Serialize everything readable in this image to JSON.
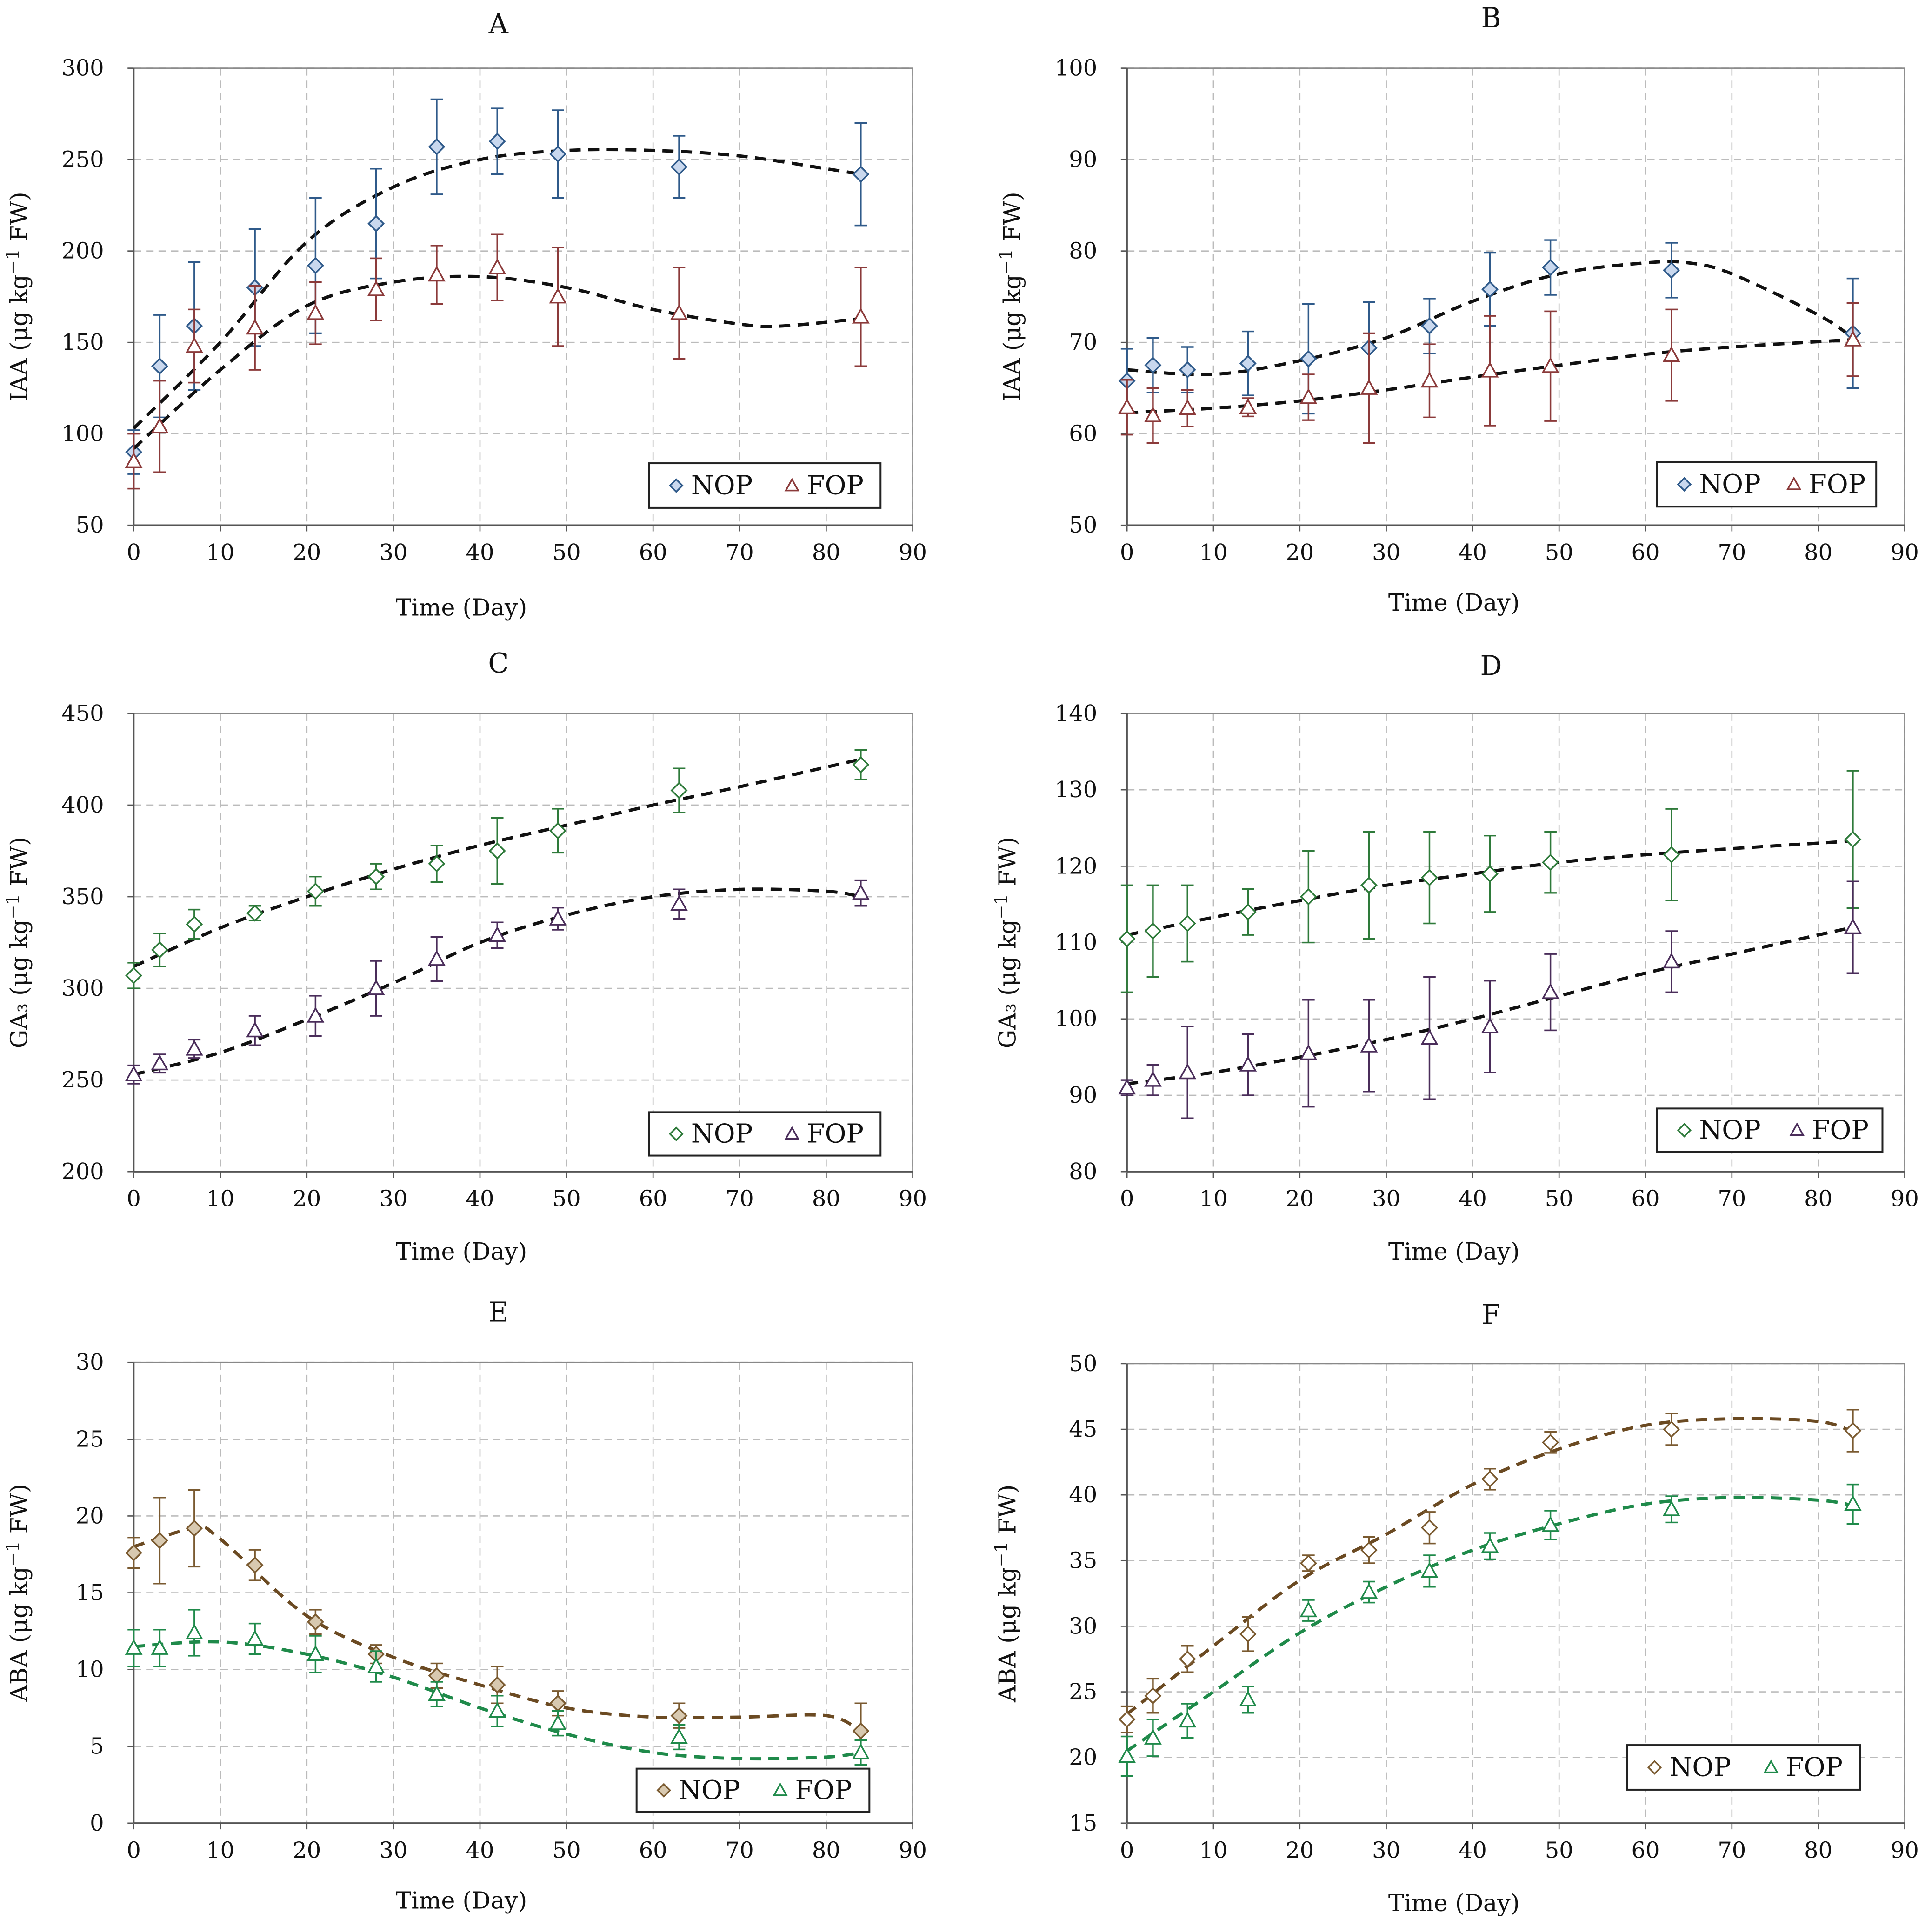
{
  "chart_data": [
    {
      "type": "line",
      "title": "A",
      "xlabel": "Time (Day)",
      "ylabel": {
        "prefix": "IAA (μg kg",
        "sup": "−1",
        "suffix": " FW)"
      },
      "xlim": [
        0,
        90
      ],
      "ylim": [
        50,
        300
      ],
      "grid": true,
      "xticks": [
        "0",
        "10",
        "20",
        "30",
        "40",
        "50",
        "60",
        "70",
        "80",
        "90"
      ],
      "yticks": [
        "50",
        "100",
        "150",
        "200",
        "250",
        "300"
      ],
      "legend": {
        "position": "bottom-right",
        "labels": [
          "NOP",
          "FOP"
        ]
      },
      "x": [
        0,
        3,
        7,
        14,
        21,
        28,
        35,
        42,
        49,
        63,
        84
      ],
      "series": [
        {
          "name": "NOP",
          "marker": "diamond",
          "color": "#2f5a8a",
          "fill": "#c9d8ee",
          "values": [
            90,
            137,
            159,
            180,
            192,
            215,
            257,
            260,
            253,
            246,
            242
          ],
          "error": [
            12,
            28,
            35,
            32,
            37,
            30,
            26,
            18,
            24,
            17,
            28
          ],
          "trend": {
            "x": [
              0,
              10,
              20,
              30,
              40,
              50,
              60,
              70,
              80,
              84
            ],
            "y": [
              103,
              150,
              205,
              235,
              250,
              255,
              255,
              252,
              245,
              242
            ],
            "color": "#111"
          }
        },
        {
          "name": "FOP",
          "marker": "triangle",
          "color": "#8b3a3a",
          "fill": "#fff",
          "values": [
            85,
            104,
            148,
            158,
            166,
            179,
            187,
            191,
            175,
            166,
            164
          ],
          "error": [
            15,
            25,
            20,
            23,
            17,
            17,
            16,
            18,
            27,
            25,
            27
          ],
          "trend": {
            "x": [
              0,
              10,
              20,
              30,
              40,
              50,
              60,
              70,
              75,
              84
            ],
            "y": [
              92,
              135,
              170,
              183,
              186,
              180,
              168,
              160,
              159,
              163
            ],
            "color": "#111"
          }
        }
      ]
    },
    {
      "type": "line",
      "title": "B",
      "xlabel": "Time (Day)",
      "ylabel": {
        "prefix": "IAA (μg kg",
        "sup": "−1",
        "suffix": " FW)"
      },
      "xlim": [
        0,
        90
      ],
      "ylim": [
        50,
        100
      ],
      "grid": true,
      "xticks": [
        "0",
        "10",
        "20",
        "30",
        "40",
        "50",
        "60",
        "70",
        "80",
        "90"
      ],
      "yticks": [
        "50",
        "60",
        "70",
        "80",
        "90",
        "100"
      ],
      "legend": {
        "position": "bottom-right",
        "labels": [
          "NOP",
          "FOP"
        ]
      },
      "x": [
        0,
        3,
        7,
        14,
        21,
        28,
        35,
        42,
        49,
        63,
        84
      ],
      "series": [
        {
          "name": "NOP",
          "marker": "diamond",
          "color": "#2f5a8a",
          "fill": "#c9d8ee",
          "values": [
            65.8,
            67.5,
            67,
            67.7,
            68.2,
            69.4,
            71.8,
            75.8,
            78.2,
            77.9,
            71
          ],
          "error": [
            3.5,
            3,
            2.5,
            3.5,
            6,
            5,
            3,
            4,
            3,
            3,
            6
          ],
          "trend": {
            "x": [
              0,
              10,
              20,
              30,
              40,
              50,
              60,
              65,
              70,
              80,
              84
            ],
            "y": [
              67,
              66.5,
              68,
              70.5,
              74.5,
              77.5,
              78.7,
              78.7,
              77.5,
              73,
              70.5
            ],
            "color": "#111"
          }
        },
        {
          "name": "FOP",
          "marker": "triangle",
          "color": "#8b3a3a",
          "fill": "#fff",
          "values": [
            62.9,
            62,
            62.8,
            62.9,
            64,
            65,
            65.8,
            66.9,
            67.4,
            68.6,
            70.3
          ],
          "error": [
            3,
            3,
            2,
            1,
            2.5,
            6,
            4,
            6,
            6,
            5,
            4
          ],
          "trend": {
            "x": [
              0,
              10,
              20,
              30,
              40,
              50,
              60,
              70,
              84
            ],
            "y": [
              62.3,
              62.8,
              63.6,
              64.8,
              66.2,
              67.5,
              68.7,
              69.5,
              70.3
            ],
            "color": "#111"
          }
        }
      ]
    },
    {
      "type": "line",
      "title": "C",
      "xlabel": "Time (Day)",
      "ylabel": {
        "prefix": "GA₃ (μg kg",
        "sup": "−1",
        "suffix": " FW)"
      },
      "xlim": [
        0,
        90
      ],
      "ylim": [
        200,
        450
      ],
      "grid": true,
      "xticks": [
        "0",
        "10",
        "20",
        "30",
        "40",
        "50",
        "60",
        "70",
        "80",
        "90"
      ],
      "yticks": [
        "200",
        "250",
        "300",
        "350",
        "400",
        "450"
      ],
      "legend": {
        "position": "bottom-right",
        "labels": [
          "NOP",
          "FOP"
        ]
      },
      "x": [
        0,
        3,
        7,
        14,
        21,
        28,
        35,
        42,
        49,
        63,
        84
      ],
      "series": [
        {
          "name": "NOP",
          "marker": "diamond",
          "color": "#2e7a3a",
          "fill": "#fff",
          "values": [
            307,
            321,
            335,
            341,
            353,
            361,
            368,
            375,
            386,
            408,
            422
          ],
          "error": [
            7,
            9,
            8,
            4,
            8,
            7,
            10,
            18,
            12,
            12,
            8
          ],
          "trend": {
            "x": [
              0,
              10,
              20,
              30,
              40,
              50,
              60,
              70,
              84
            ],
            "y": [
              312,
              333,
              350,
              365,
              378,
              389,
              400,
              410,
              425
            ],
            "color": "#111"
          }
        },
        {
          "name": "FOP",
          "marker": "triangle",
          "color": "#4a2d5a",
          "fill": "#fff",
          "values": [
            253,
            259,
            267,
            277,
            285,
            300,
            316,
            329,
            338,
            346,
            352
          ],
          "error": [
            5,
            5,
            5,
            8,
            11,
            15,
            12,
            7,
            6,
            8,
            7
          ],
          "trend": {
            "x": [
              0,
              10,
              20,
              30,
              40,
              50,
              60,
              70,
              80,
              84
            ],
            "y": [
              253,
              265,
              283,
              303,
              325,
              340,
              350,
              354,
              353,
              350
            ],
            "color": "#111"
          }
        }
      ]
    },
    {
      "type": "line",
      "title": "D",
      "xlabel": "Time (Day)",
      "ylabel": {
        "prefix": "GA₃ (μg kg",
        "sup": "−1",
        "suffix": " FW)"
      },
      "xlim": [
        0,
        90
      ],
      "ylim": [
        80,
        140
      ],
      "grid": true,
      "xticks": [
        "0",
        "10",
        "20",
        "30",
        "40",
        "50",
        "60",
        "70",
        "80",
        "90"
      ],
      "yticks": [
        "80",
        "90",
        "100",
        "110",
        "120",
        "130",
        "140"
      ],
      "legend": {
        "position": "bottom-right",
        "labels": [
          "NOP",
          "FOP"
        ]
      },
      "x": [
        0,
        3,
        7,
        14,
        21,
        28,
        35,
        42,
        49,
        63,
        84
      ],
      "series": [
        {
          "name": "NOP",
          "marker": "diamond",
          "color": "#2e7a3a",
          "fill": "#fff",
          "values": [
            110.5,
            111.5,
            112.5,
            114,
            116,
            117.5,
            118.5,
            119,
            120.5,
            121.5,
            123.5
          ],
          "error": [
            7,
            6,
            5,
            3,
            6,
            7,
            6,
            5,
            4,
            6,
            9
          ],
          "trend": {
            "x": [
              0,
              10,
              20,
              30,
              40,
              50,
              60,
              70,
              84
            ],
            "y": [
              111,
              113.3,
              115.5,
              117.5,
              119,
              120.5,
              121.5,
              122.3,
              123.3
            ],
            "color": "#111"
          }
        },
        {
          "name": "FOP",
          "marker": "triangle",
          "color": "#4a2d5a",
          "fill": "#fff",
          "values": [
            91,
            92,
            93,
            94,
            95.5,
            96.5,
            97.5,
            99,
            103.5,
            107.5,
            112
          ],
          "error": [
            1,
            2,
            6,
            4,
            7,
            6,
            8,
            6,
            5,
            4,
            6
          ],
          "trend": {
            "x": [
              0,
              10,
              20,
              30,
              40,
              50,
              60,
              70,
              84
            ],
            "y": [
              91.5,
              93,
              95,
              97.3,
              100,
              103,
              106,
              108.5,
              112
            ],
            "color": "#111"
          }
        }
      ]
    },
    {
      "type": "line",
      "title": "E",
      "xlabel": "Time (Day)",
      "ylabel": {
        "prefix": "ABA (μg kg",
        "sup": "−1",
        "suffix": " FW)"
      },
      "xlim": [
        0,
        90
      ],
      "ylim": [
        0,
        30
      ],
      "grid": true,
      "xticks": [
        "0",
        "10",
        "20",
        "30",
        "40",
        "50",
        "60",
        "70",
        "80",
        "90"
      ],
      "yticks": [
        "0",
        "5",
        "10",
        "15",
        "20",
        "25",
        "30"
      ],
      "legend": {
        "position": "bottom-right",
        "labels": [
          "NOP",
          "FOP"
        ]
      },
      "x": [
        0,
        3,
        7,
        14,
        21,
        28,
        35,
        42,
        49,
        63,
        84
      ],
      "series": [
        {
          "name": "NOP",
          "marker": "diamond",
          "color": "#7a5a30",
          "fill": "#d8c9b0",
          "values": [
            17.6,
            18.4,
            19.2,
            16.8,
            13.1,
            11,
            9.6,
            9,
            7.8,
            7,
            6
          ],
          "error": [
            1,
            2.8,
            2.5,
            1,
            0.8,
            0.6,
            0.8,
            1.2,
            0.8,
            0.8,
            1.8
          ],
          "trend": {
            "x": [
              0,
              7,
              10,
              20,
              30,
              40,
              50,
              60,
              70,
              80,
              84
            ],
            "y": [
              18,
              19.2,
              18.5,
              13.5,
              10.8,
              9,
              7.5,
              6.9,
              6.9,
              7,
              6
            ],
            "color": "#6b4a22"
          }
        },
        {
          "name": "FOP",
          "marker": "triangle",
          "color": "#1f8a4a",
          "fill": "#fff",
          "values": [
            11.4,
            11.4,
            12.4,
            12,
            11,
            10.2,
            8.4,
            7.3,
            6.5,
            5.6,
            4.6
          ],
          "error": [
            1.2,
            1.2,
            1.5,
            1,
            1.2,
            1,
            0.8,
            1,
            0.8,
            0.8,
            0.8
          ],
          "trend": {
            "x": [
              0,
              10,
              20,
              30,
              40,
              50,
              60,
              70,
              80,
              84
            ],
            "y": [
              11.5,
              11.8,
              11,
              9.5,
              7.5,
              5.8,
              4.6,
              4.2,
              4.3,
              4.6
            ],
            "color": "#1f8a4a"
          }
        }
      ]
    },
    {
      "type": "line",
      "title": "F",
      "xlabel": "Time (Day)",
      "ylabel": {
        "prefix": "ABA (μg kg",
        "sup": "−1",
        "suffix": " FW)"
      },
      "xlim": [
        0,
        90
      ],
      "ylim": [
        15,
        50
      ],
      "grid": true,
      "xticks": [
        "0",
        "10",
        "20",
        "30",
        "40",
        "50",
        "60",
        "70",
        "80",
        "90"
      ],
      "yticks": [
        "15",
        "20",
        "25",
        "30",
        "35",
        "40",
        "45",
        "50"
      ],
      "legend": {
        "position": "bottom-right",
        "labels": [
          "NOP",
          "FOP"
        ]
      },
      "x": [
        0,
        3,
        7,
        14,
        21,
        28,
        35,
        42,
        49,
        63,
        84
      ],
      "series": [
        {
          "name": "NOP",
          "marker": "diamond",
          "color": "#7a5a30",
          "fill": "#fff",
          "values": [
            22.9,
            24.7,
            27.5,
            29.4,
            34.8,
            35.8,
            37.5,
            41.2,
            44,
            45,
            44.9
          ],
          "error": [
            1,
            1.3,
            1,
            1.3,
            0.6,
            1,
            1.2,
            0.8,
            0.8,
            1.2,
            1.6
          ],
          "trend": {
            "x": [
              0,
              10,
              20,
              30,
              40,
              50,
              60,
              70,
              80,
              84
            ],
            "y": [
              23.3,
              28.5,
              33.5,
              37,
              40.8,
              43.5,
              45.3,
              45.8,
              45.6,
              44.8
            ],
            "color": "#6b4a22"
          }
        },
        {
          "name": "FOP",
          "marker": "triangle",
          "color": "#1f8a4a",
          "fill": "#fff",
          "values": [
            20.1,
            21.5,
            22.8,
            24.4,
            31.2,
            32.6,
            34.2,
            36.1,
            37.7,
            38.9,
            39.3
          ],
          "error": [
            1.5,
            1.4,
            1.3,
            1,
            0.8,
            0.8,
            1.2,
            1,
            1.1,
            1,
            1.5
          ],
          "trend": {
            "x": [
              0,
              10,
              20,
              30,
              40,
              50,
              60,
              70,
              80,
              84
            ],
            "y": [
              20.5,
              25,
              29.5,
              33,
              35.8,
              37.8,
              39.3,
              39.8,
              39.6,
              39.2
            ],
            "color": "#1f8a4a"
          }
        }
      ]
    }
  ]
}
